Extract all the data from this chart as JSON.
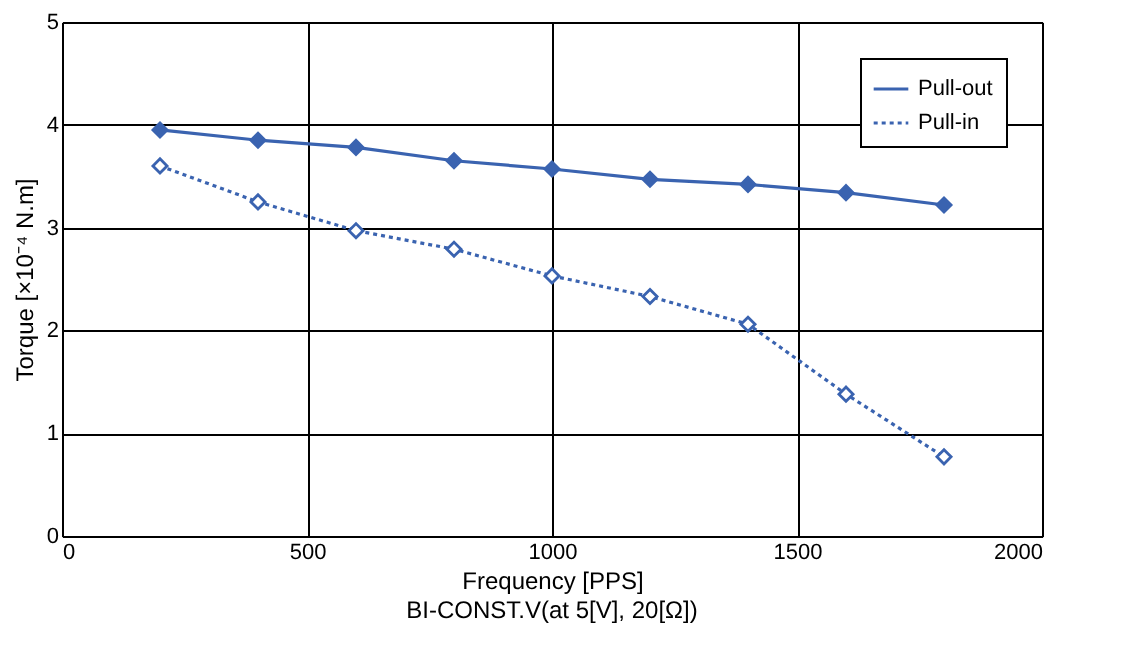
{
  "chart_data": {
    "type": "line",
    "xlabel": "Frequency [PPS]",
    "ylabel": "Torque [×10⁻⁴ N.m]",
    "x": [
      200,
      400,
      600,
      800,
      1000,
      1200,
      1400,
      1600,
      1800
    ],
    "series": [
      {
        "name": "Pull-out",
        "color": "#3a63b0",
        "line_style": "solid",
        "values": [
          3.95,
          3.85,
          3.78,
          3.65,
          3.57,
          3.47,
          3.42,
          3.34,
          3.22
        ]
      },
      {
        "name": "Pull-in",
        "color": "#3a63b0",
        "line_style": "dotted",
        "values": [
          3.6,
          3.25,
          2.97,
          2.79,
          2.53,
          2.33,
          2.06,
          1.38,
          0.77
        ]
      }
    ],
    "xlim": [
      0,
      2000
    ],
    "xticks": [
      0,
      500,
      1000,
      1500,
      2000
    ],
    "ylim": [
      0,
      5
    ],
    "yticks": [
      0,
      1,
      2,
      3,
      4,
      5
    ],
    "grid": true,
    "legend": "top right",
    "marker": "diamond",
    "annotations": [
      "BI-CONST.V(at 5[V], 20[Ω])"
    ]
  }
}
